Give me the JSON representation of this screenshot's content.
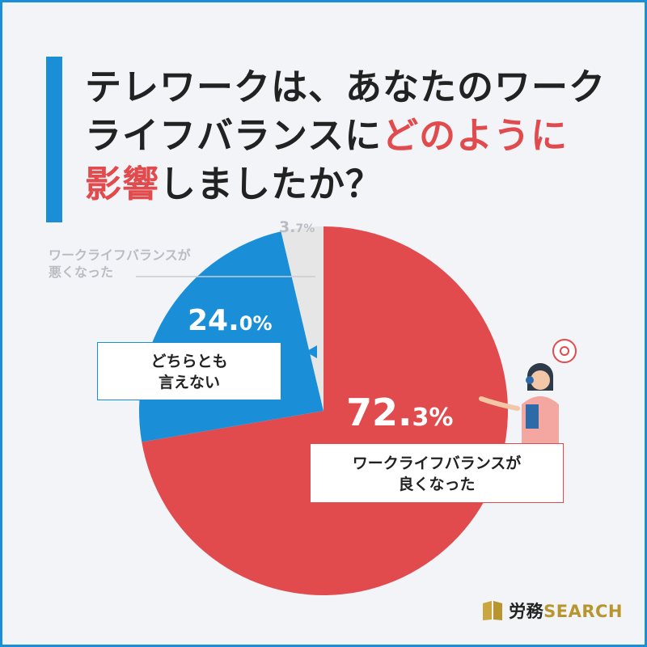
{
  "title": {
    "line1": "テレワークは、あなたのワーク",
    "line2_plain": "ライフバランスに",
    "line2_highlight": "どのように",
    "line3_highlight": "影響",
    "line3_plain": "しましたか？"
  },
  "chart_data": {
    "type": "pie",
    "slices": [
      {
        "label": "ワークライフバランスが良くなった",
        "value": 72.3,
        "display_int": "72.",
        "display_dec": "3%",
        "color": "#e14b4e"
      },
      {
        "label": "どちらとも言えない",
        "value": 24.0,
        "display_int": "24.",
        "display_dec": "0%",
        "color": "#1a8fd8"
      },
      {
        "label": "ワークライフバランスが悪くなった",
        "value": 3.7,
        "display_int": "3.",
        "display_dec": "7%",
        "color": "#e6e6e6"
      }
    ]
  },
  "labels": {
    "good_line1": "ワークライフバランスが",
    "good_line2": "良くなった",
    "neutral_line1": "どちらとも",
    "neutral_line2": "言えない",
    "bad_line1": "ワークライフバランスが",
    "bad_line2": "悪くなった"
  },
  "logo": {
    "text_ja": "労務",
    "text_en": "SEARCH",
    "accent": "#b8952e"
  }
}
